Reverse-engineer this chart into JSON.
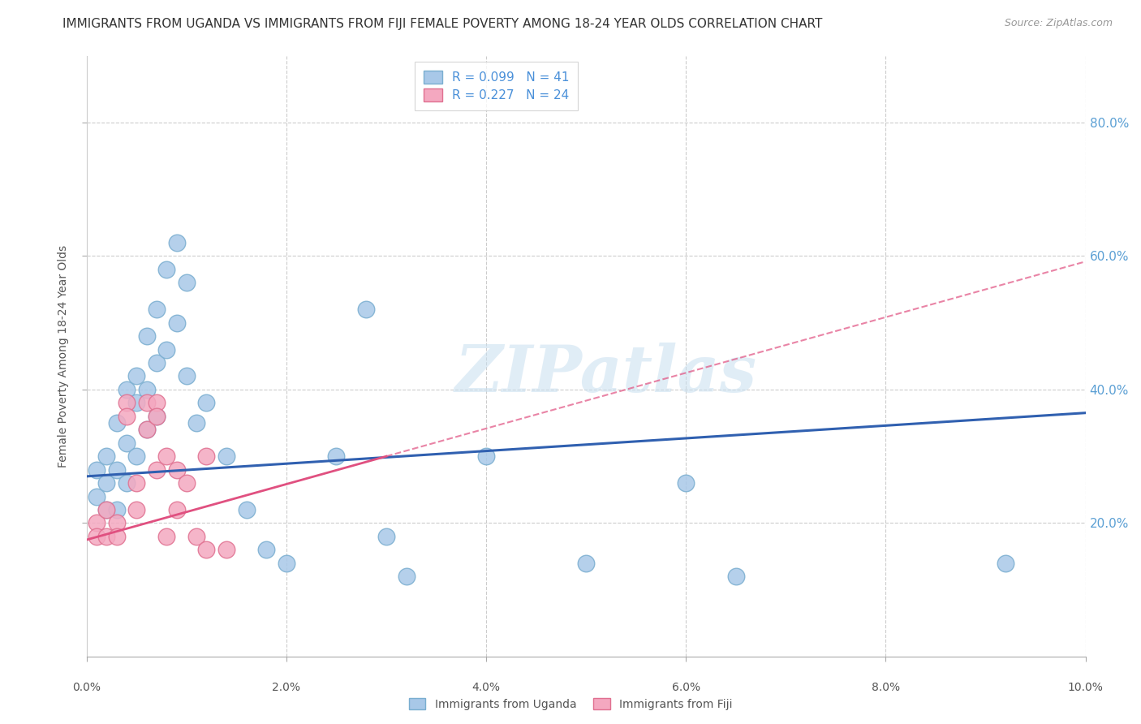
{
  "title": "IMMIGRANTS FROM UGANDA VS IMMIGRANTS FROM FIJI FEMALE POVERTY AMONG 18-24 YEAR OLDS CORRELATION CHART",
  "source": "Source: ZipAtlas.com",
  "ylabel": "Female Poverty Among 18-24 Year Olds",
  "xlim": [
    0.0,
    0.1
  ],
  "ylim": [
    0.0,
    0.9
  ],
  "xtick_labels": [
    "0.0%",
    "2.0%",
    "4.0%",
    "6.0%",
    "8.0%",
    "10.0%"
  ],
  "xtick_vals": [
    0.0,
    0.02,
    0.04,
    0.06,
    0.08,
    0.1
  ],
  "ytick_labels": [
    "20.0%",
    "40.0%",
    "60.0%",
    "80.0%"
  ],
  "ytick_vals": [
    0.2,
    0.4,
    0.6,
    0.8
  ],
  "uganda_color": "#a8c8e8",
  "fiji_color": "#f4a8c0",
  "uganda_edge": "#7aaed0",
  "fiji_edge": "#e07090",
  "line_uganda_color": "#3060b0",
  "line_fiji_color": "#e05080",
  "R_uganda": 0.099,
  "N_uganda": 41,
  "R_fiji": 0.227,
  "N_fiji": 24,
  "background_color": "#ffffff",
  "grid_color": "#cccccc",
  "title_fontsize": 11,
  "label_fontsize": 10,
  "legend_fontsize": 11,
  "uganda_x": [
    0.001,
    0.001,
    0.002,
    0.002,
    0.002,
    0.003,
    0.003,
    0.003,
    0.004,
    0.004,
    0.004,
    0.005,
    0.005,
    0.005,
    0.006,
    0.006,
    0.006,
    0.007,
    0.007,
    0.007,
    0.008,
    0.008,
    0.009,
    0.009,
    0.01,
    0.01,
    0.011,
    0.012,
    0.014,
    0.016,
    0.018,
    0.02,
    0.025,
    0.028,
    0.03,
    0.032,
    0.04,
    0.05,
    0.06,
    0.065,
    0.092
  ],
  "uganda_y": [
    0.28,
    0.24,
    0.3,
    0.26,
    0.22,
    0.35,
    0.28,
    0.22,
    0.4,
    0.32,
    0.26,
    0.42,
    0.38,
    0.3,
    0.48,
    0.4,
    0.34,
    0.52,
    0.44,
    0.36,
    0.58,
    0.46,
    0.62,
    0.5,
    0.56,
    0.42,
    0.35,
    0.38,
    0.3,
    0.22,
    0.16,
    0.14,
    0.3,
    0.52,
    0.18,
    0.12,
    0.3,
    0.14,
    0.26,
    0.12,
    0.14
  ],
  "fiji_x": [
    0.001,
    0.001,
    0.002,
    0.002,
    0.003,
    0.003,
    0.004,
    0.004,
    0.005,
    0.005,
    0.006,
    0.006,
    0.007,
    0.007,
    0.007,
    0.008,
    0.008,
    0.009,
    0.009,
    0.01,
    0.011,
    0.012,
    0.012,
    0.014
  ],
  "fiji_y": [
    0.2,
    0.18,
    0.22,
    0.18,
    0.2,
    0.18,
    0.38,
    0.36,
    0.26,
    0.22,
    0.38,
    0.34,
    0.38,
    0.36,
    0.28,
    0.3,
    0.18,
    0.28,
    0.22,
    0.26,
    0.18,
    0.16,
    0.3,
    0.16
  ]
}
